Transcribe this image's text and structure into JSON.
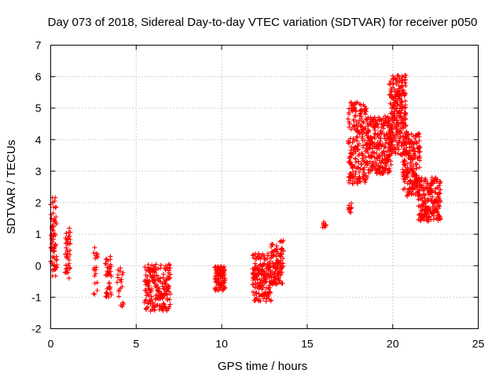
{
  "chart_data": {
    "type": "scatter",
    "title": "Day 073 of 2018, Sidereal Day-to-day VTEC variation (SDTVAR) for receiver p050",
    "xlabel": "GPS time / hours",
    "ylabel": "SDTVAR / TECUs",
    "xlim": [
      0,
      25
    ],
    "ylim": [
      -2,
      7
    ],
    "x_ticks": [
      0,
      5,
      10,
      15,
      20,
      25
    ],
    "y_ticks": [
      -2,
      -1,
      0,
      1,
      2,
      3,
      4,
      5,
      6,
      7
    ],
    "grid": true,
    "marker": "+",
    "color": "#ff0000",
    "series": [
      {
        "name": "p050",
        "clusters": [
          {
            "x0": 0.0,
            "x1": 0.35,
            "ylow": -0.4,
            "yhigh": 2.2,
            "n": 70
          },
          {
            "x0": 0.85,
            "x1": 1.15,
            "ylow": -0.4,
            "yhigh": 1.2,
            "n": 40
          },
          {
            "x0": 2.5,
            "x1": 2.75,
            "ylow": -1.0,
            "yhigh": 0.6,
            "n": 20
          },
          {
            "x0": 3.2,
            "x1": 3.55,
            "ylow": -1.0,
            "yhigh": 0.3,
            "n": 40
          },
          {
            "x0": 3.9,
            "x1": 4.25,
            "ylow": -1.35,
            "yhigh": -0.05,
            "n": 20
          },
          {
            "x0": 5.5,
            "x1": 7.0,
            "ylow": -1.45,
            "yhigh": 0.05,
            "n": 200
          },
          {
            "x0": 9.6,
            "x1": 10.2,
            "ylow": -0.8,
            "yhigh": 0.0,
            "n": 90
          },
          {
            "x0": 11.8,
            "x1": 12.9,
            "ylow": -1.15,
            "yhigh": 0.4,
            "n": 170
          },
          {
            "x0": 12.9,
            "x1": 13.6,
            "ylow": -0.6,
            "yhigh": 0.8,
            "n": 100
          },
          {
            "x0": 15.9,
            "x1": 16.1,
            "ylow": 1.2,
            "yhigh": 1.4,
            "n": 8
          },
          {
            "x0": 17.4,
            "x1": 17.6,
            "ylow": 1.6,
            "yhigh": 2.0,
            "n": 10
          },
          {
            "x0": 17.4,
            "x1": 18.5,
            "ylow": 2.6,
            "yhigh": 5.2,
            "n": 220
          },
          {
            "x0": 18.5,
            "x1": 19.9,
            "ylow": 2.9,
            "yhigh": 4.8,
            "n": 250
          },
          {
            "x0": 19.8,
            "x1": 20.8,
            "ylow": 3.5,
            "yhigh": 6.05,
            "n": 250
          },
          {
            "x0": 20.6,
            "x1": 21.6,
            "ylow": 2.2,
            "yhigh": 4.2,
            "n": 200
          },
          {
            "x0": 21.5,
            "x1": 22.8,
            "ylow": 1.4,
            "yhigh": 2.8,
            "n": 200
          }
        ]
      }
    ]
  }
}
